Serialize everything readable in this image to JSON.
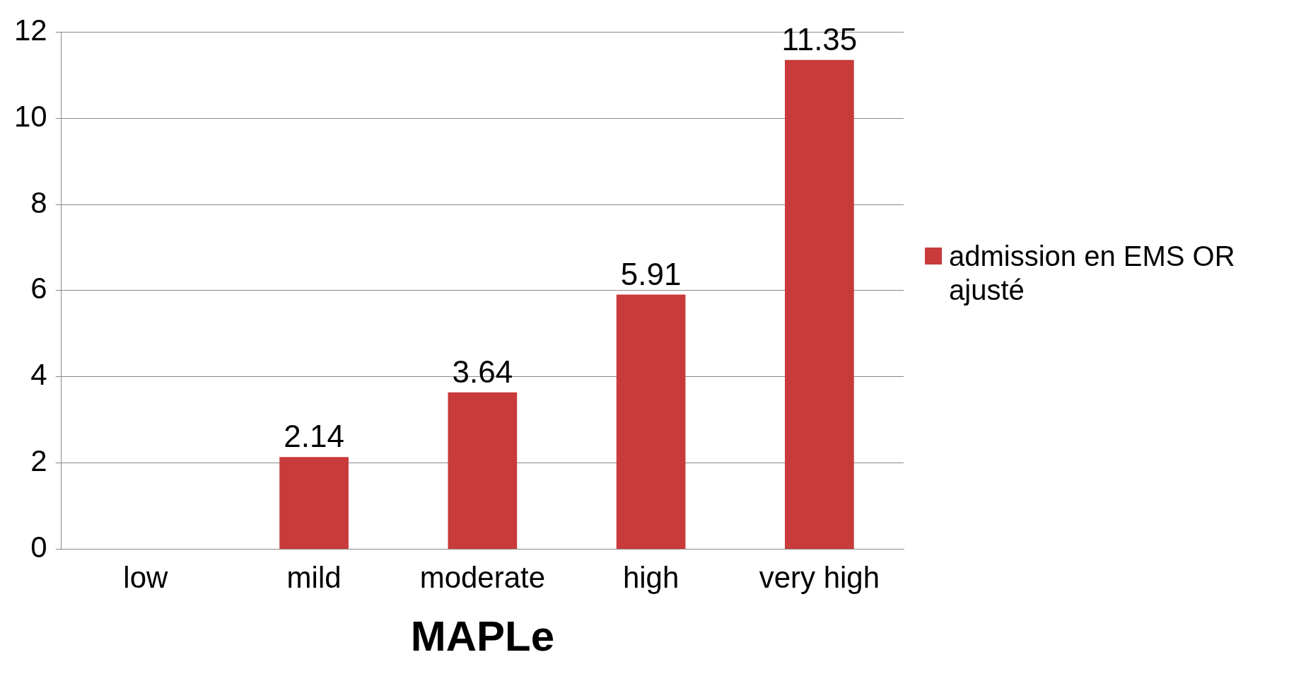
{
  "chart_data": {
    "type": "bar",
    "xlabel": "MAPLe",
    "categories": [
      "low",
      "mild",
      "moderate",
      "high",
      "very high"
    ],
    "series": [
      {
        "name": "admission en EMS OR ajusté",
        "color": "#c93a3a",
        "values": [
          null,
          2.14,
          3.64,
          5.91,
          11.35
        ]
      }
    ],
    "ylim": [
      0,
      12
    ],
    "yticks": [
      0,
      2,
      4,
      6,
      8,
      10,
      12
    ],
    "grid": "y",
    "legend": "right",
    "data_labels": true
  }
}
